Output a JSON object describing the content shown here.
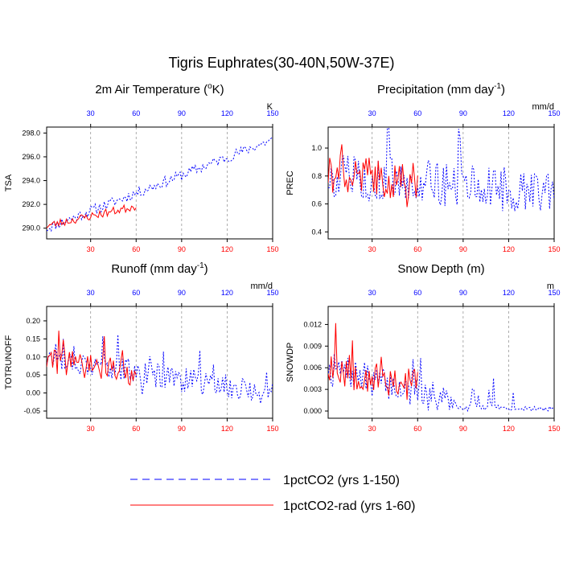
{
  "figure": {
    "title": "Tigris Euphrates(30-40N,50W-37E)",
    "colors": {
      "series1": "#0000ff",
      "series2": "#ff0000",
      "grid": "#999999",
      "axis": "#000000",
      "top_ticks": "#0000ff",
      "bottom_ticks": "#ff0000"
    }
  },
  "legend": {
    "items": [
      {
        "label": "1pctCO2 (yrs 1-150)",
        "style": "dashed",
        "color": "#0000ff"
      },
      {
        "label": "1pctCO2-rad (yrs 1-60)",
        "style": "solid",
        "color": "#ff0000"
      }
    ]
  },
  "chart_data": [
    {
      "id": "tsa",
      "type": "line",
      "title_text": "2m Air Temperature (",
      "title_sup": "o",
      "title_tail": "K)",
      "ylabel": "TSA",
      "units": "K",
      "xlim": [
        1,
        150
      ],
      "ylim": [
        289.1,
        298.5
      ],
      "x_ticks": [
        30,
        60,
        90,
        120,
        150
      ],
      "y_ticks": [
        290.0,
        292.0,
        294.0,
        296.0,
        298.0
      ],
      "y_tick_labels": [
        "290.0",
        "292.0",
        "294.0",
        "296.0",
        "298.0"
      ],
      "series": [
        {
          "name": "1pctCO2 (yrs 1-150)",
          "base": 290.0,
          "trend": 0.05,
          "amp": 0.45,
          "seed": 11,
          "spike_prob": 0.0,
          "spike_amp": 0.0,
          "min": 289.6,
          "n": 150
        },
        {
          "name": "1pctCO2-rad (yrs 1-60)",
          "base": 290.2,
          "trend": 0.028,
          "amp": 0.35,
          "seed": 23,
          "spike_prob": 0.0,
          "spike_amp": 0.0,
          "min": 289.6,
          "n": 60
        }
      ]
    },
    {
      "id": "prec",
      "type": "line",
      "title_text": "Precipitation (mm day",
      "title_sup": "-1",
      "title_tail": ")",
      "ylabel": "PREC",
      "units": "mm/d",
      "xlim": [
        1,
        150
      ],
      "ylim": [
        0.35,
        1.15
      ],
      "x_ticks": [
        30,
        60,
        90,
        120,
        150
      ],
      "y_ticks": [
        0.4,
        0.6,
        0.8,
        1.0
      ],
      "y_tick_labels": [
        "0.4",
        "0.6",
        "0.8",
        "1.0"
      ],
      "series": [
        {
          "name": "1pctCO2 (yrs 1-150)",
          "base": 0.8,
          "trend": -0.0008,
          "amp": 0.16,
          "seed": 5,
          "spike_prob": 0.06,
          "spike_amp": 0.25,
          "min": 0.4,
          "n": 150
        },
        {
          "name": "1pctCO2-rad (yrs 1-60)",
          "base": 0.82,
          "trend": -0.001,
          "amp": 0.14,
          "seed": 41,
          "spike_prob": 0.05,
          "spike_amp": 0.18,
          "min": 0.5,
          "n": 60
        }
      ]
    },
    {
      "id": "runoff",
      "type": "line",
      "title_text": "Runoff (mm day",
      "title_sup": "-1",
      "title_tail": ")",
      "ylabel": "TOTRUNOFF",
      "units": "mm/d",
      "xlim": [
        1,
        150
      ],
      "ylim": [
        -0.07,
        0.24
      ],
      "x_ticks": [
        30,
        60,
        90,
        120,
        150
      ],
      "y_ticks": [
        -0.05,
        0.0,
        0.05,
        0.1,
        0.15,
        0.2
      ],
      "y_tick_labels": [
        "-0.05",
        "0.00",
        "0.05",
        "0.10",
        "0.15",
        "0.20"
      ],
      "series": [
        {
          "name": "1pctCO2 (yrs 1-150)",
          "base": 0.1,
          "trend": -0.0007,
          "amp": 0.035,
          "seed": 17,
          "spike_prob": 0.07,
          "spike_amp": 0.06,
          "min": -0.06,
          "n": 150
        },
        {
          "name": "1pctCO2-rad (yrs 1-60)",
          "base": 0.09,
          "trend": -0.0006,
          "amp": 0.035,
          "seed": 29,
          "spike_prob": 0.08,
          "spike_amp": 0.07,
          "min": -0.01,
          "n": 60
        }
      ]
    },
    {
      "id": "snowdp",
      "type": "line",
      "title_text": "Snow Depth (m)",
      "title_sup": "",
      "title_tail": "",
      "ylabel": "SNOWDP",
      "units": "m",
      "xlim": [
        1,
        150
      ],
      "ylim": [
        -0.001,
        0.0145
      ],
      "x_ticks": [
        30,
        60,
        90,
        120,
        150
      ],
      "y_ticks": [
        0.0,
        0.003,
        0.006,
        0.009,
        0.012
      ],
      "y_tick_labels": [
        "0.000",
        "0.003",
        "0.006",
        "0.009",
        "0.012"
      ],
      "series": [
        {
          "name": "1pctCO2 (yrs 1-150)",
          "base": 0.006,
          "trend": -6e-05,
          "amp": 0.0022,
          "seed": 7,
          "spike_prob": 0.06,
          "spike_amp": 0.003,
          "min": 0.0,
          "n": 150
        },
        {
          "name": "1pctCO2-rad (yrs 1-60)",
          "base": 0.0065,
          "trend": -5e-05,
          "amp": 0.0028,
          "seed": 53,
          "spike_prob": 0.08,
          "spike_amp": 0.004,
          "min": 0.0005,
          "n": 60
        }
      ]
    }
  ]
}
